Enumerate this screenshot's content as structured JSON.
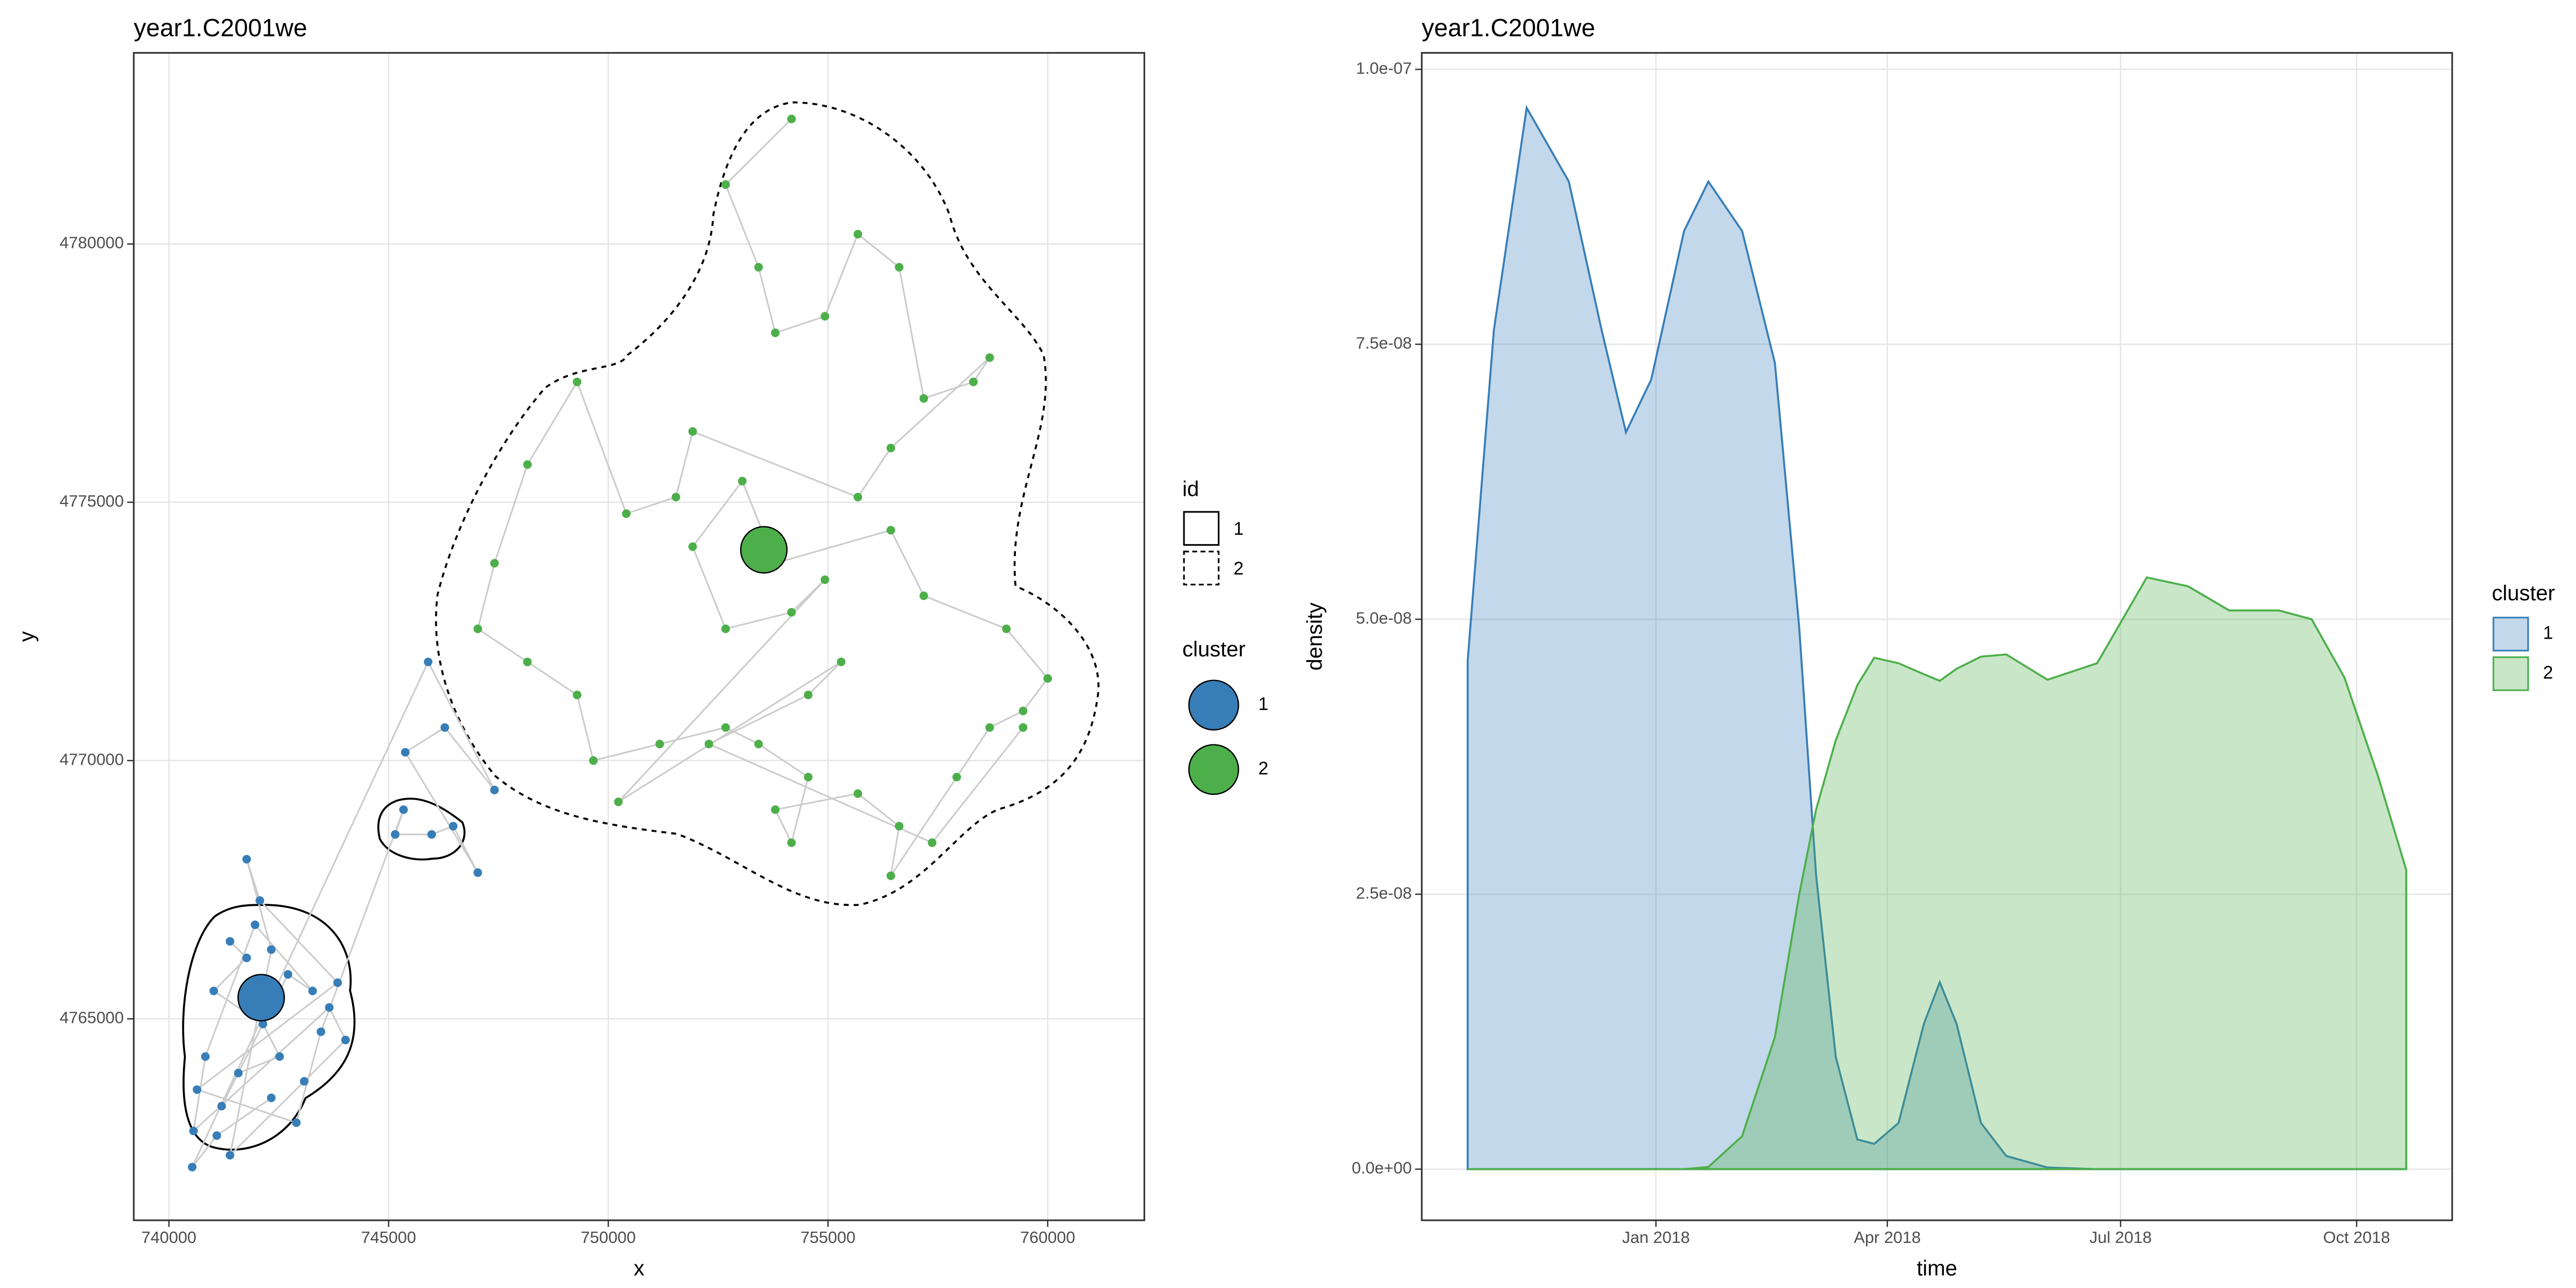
{
  "chart_data": [
    {
      "type": "scatter",
      "title": "year1.C2001we",
      "x_label": "x",
      "y_label": "y",
      "xlim": [
        739200,
        762200
      ],
      "ylim": [
        4761100,
        4783700
      ],
      "xticks": [
        740000,
        745000,
        750000,
        755000,
        760000
      ],
      "yticks": [
        4765000,
        4770000,
        4775000,
        4780000
      ],
      "grid": true,
      "id_legend": {
        "title": "id",
        "labels": [
          "1",
          "2"
        ]
      },
      "legend_title": "cluster",
      "series": [
        {
          "name": "1",
          "color": "#377eb8",
          "centroid_x": 742100,
          "centroid_y": 4765410,
          "x": [
            741390,
            741770,
            741020,
            742140,
            742520,
            741580,
            741200,
            742710,
            743270,
            741960,
            740830,
            740560,
            743650,
            744020,
            743080,
            741390,
            742330,
            741770,
            742070,
            743840,
            740640,
            742900,
            743460,
            745340,
            745150,
            745980,
            746470,
            747030,
            745380,
            746280,
            747410,
            745900,
            740530,
            741090,
            742330
          ],
          "values": [
            4766500,
            4766180,
            4765540,
            4764900,
            4764270,
            4763950,
            4763310,
            4765860,
            4765540,
            4766820,
            4764270,
            4762830,
            4765220,
            4764590,
            4763790,
            4762360,
            4766340,
            4768090,
            4767290,
            4765700,
            4763630,
            4762990,
            4764750,
            4769050,
            4768570,
            4768570,
            4768730,
            4767830,
            4770160,
            4770640,
            4769430,
            4771910,
            4762130,
            4762740,
            4763470
          ]
        },
        {
          "name": "2",
          "color": "#4daf4a",
          "centroid_x": 753540,
          "centroid_y": 4774080,
          "x": [
            754170,
            752670,
            753420,
            753800,
            754930,
            755680,
            756620,
            757180,
            758310,
            758680,
            756430,
            755680,
            751920,
            751540,
            750410,
            749290,
            748160,
            747410,
            747030,
            748160,
            749290,
            749660,
            751170,
            752670,
            753420,
            754550,
            754170,
            753800,
            755680,
            756620,
            756430,
            757930,
            758680,
            759440,
            760000,
            759060,
            757180,
            756430,
            753800,
            753050,
            751920,
            752670,
            754170,
            754930,
            750230,
            755300,
            754550,
            752290,
            757370,
            759440
          ],
          "values": [
            4782420,
            4781150,
            4779550,
            4778280,
            4778600,
            4780190,
            4779550,
            4777010,
            4777330,
            4777800,
            4776050,
            4775100,
            4776370,
            4775100,
            4774780,
            4777330,
            4775730,
            4773820,
            4772550,
            4771910,
            4771270,
            4770000,
            4770320,
            4770640,
            4770320,
            4769680,
            4768410,
            4769050,
            4769360,
            4768730,
            4767770,
            4769680,
            4770640,
            4770960,
            4771590,
            4772550,
            4773190,
            4774460,
            4773820,
            4775410,
            4774140,
            4772550,
            4772870,
            4773500,
            4769200,
            4771910,
            4771270,
            4770320,
            4768410,
            4770640
          ]
        }
      ]
    },
    {
      "type": "area",
      "title": "year1.C2001we",
      "x_label": "time",
      "y_label": "density",
      "xlim": [
        2017.75,
        2018.85
      ],
      "ylim": [
        -4.65e-09,
        1.015e-07
      ],
      "xticks": [
        {
          "value": 2018,
          "label": "Jan 2018"
        },
        {
          "value": 2018.247,
          "label": "Apr 2018"
        },
        {
          "value": 2018.496,
          "label": "Jul 2018"
        },
        {
          "value": 2018.748,
          "label": "Oct 2018"
        }
      ],
      "yticks": [
        {
          "value": 0,
          "label": "0.0e+00"
        },
        {
          "value": 2.5e-08,
          "label": "2.5e-08"
        },
        {
          "value": 5e-08,
          "label": "5.0e-08"
        },
        {
          "value": 7.5e-08,
          "label": "7.5e-08"
        },
        {
          "value": 1e-07,
          "label": "1.0e-07"
        }
      ],
      "grid": true,
      "legend_title": "cluster",
      "x": [
        2017.799,
        2017.827,
        2017.862,
        2017.907,
        2017.942,
        2017.968,
        2017.995,
        2018.03,
        2018.056,
        2018.092,
        2018.127,
        2018.153,
        2018.171,
        2018.192,
        2018.215,
        2018.233,
        2018.259,
        2018.286,
        2018.303,
        2018.321,
        2018.347,
        2018.374,
        2018.418,
        2018.471,
        2018.524,
        2018.568,
        2018.612,
        2018.665,
        2018.7,
        2018.735,
        2018.771,
        2018.801
      ],
      "series": [
        {
          "name": "1",
          "color": "#377eb8",
          "fill_opacity": 0.3,
          "values": [
            4.62e-08,
            7.63e-08,
            9.65e-08,
            8.98e-08,
            7.63e-08,
            6.7e-08,
            7.18e-08,
            8.53e-08,
            8.98e-08,
            8.53e-08,
            7.33e-08,
            4.92e-08,
            2.67e-08,
            1.02e-08,
            2.7e-09,
            2.3e-09,
            4.2e-09,
            1.32e-08,
            1.7e-08,
            1.32e-08,
            4.2e-09,
            1.2e-09,
            1.5e-10,
            0,
            0,
            0,
            0,
            0,
            0,
            0,
            0,
            0
          ]
        },
        {
          "name": "2",
          "color": "#4daf4a",
          "fill_opacity": 0.3,
          "values": [
            0,
            0,
            0,
            0,
            0,
            0,
            0,
            0,
            2e-10,
            3e-09,
            1.2e-08,
            2.5e-08,
            3.27e-08,
            3.9e-08,
            4.4e-08,
            4.65e-08,
            4.6e-08,
            4.5e-08,
            4.44e-08,
            4.55e-08,
            4.66e-08,
            4.68e-08,
            4.45e-08,
            4.6e-08,
            5.38e-08,
            5.3e-08,
            5.08e-08,
            5.08e-08,
            5e-08,
            4.47e-08,
            3.57e-08,
            2.72e-08
          ]
        }
      ]
    }
  ]
}
